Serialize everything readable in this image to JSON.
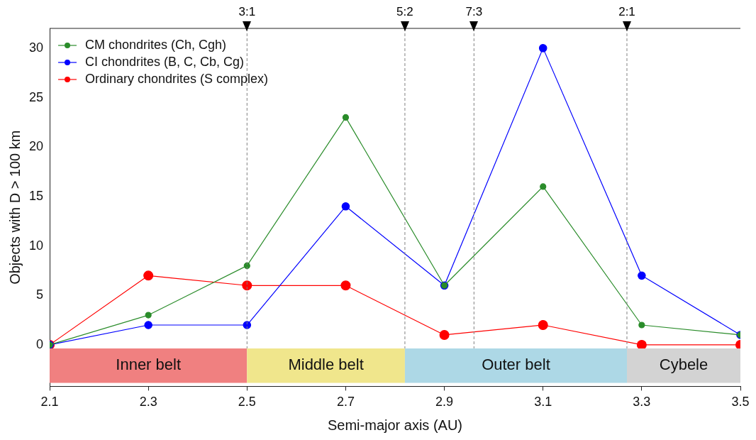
{
  "chart_data": {
    "type": "line",
    "xlabel": "Semi-major axis (AU)",
    "ylabel": "Objects with D > 100 km",
    "x": [
      2.1,
      2.3,
      2.5,
      2.7,
      2.9,
      3.1,
      3.3,
      3.5
    ],
    "series": [
      {
        "name": "CM chondrites (Ch, Cgh)",
        "color": "#2a8c2a",
        "values": [
          0,
          3,
          8,
          23,
          6,
          16,
          2,
          1
        ]
      },
      {
        "name": "CI chondrites (B, C, Cb, Cg)",
        "color": "#0000ff",
        "values": [
          0,
          2,
          2,
          14,
          6,
          30,
          7,
          1
        ]
      },
      {
        "name": "Ordinary chondrites (S complex)",
        "color": "#ff0000",
        "values": [
          0,
          7,
          6,
          6,
          1,
          2,
          0,
          0
        ]
      }
    ],
    "xlim": [
      2.1,
      3.5
    ],
    "xticks": [
      2.1,
      2.3,
      2.5,
      2.7,
      2.9,
      3.1,
      3.3,
      3.5
    ],
    "ylim": [
      -4.2,
      32
    ],
    "yticks": [
      0,
      5,
      10,
      15,
      20,
      25,
      30
    ],
    "ref_lines": [
      {
        "axis": "x",
        "value": 2.5,
        "color": "#808080",
        "line_style": "dashed"
      },
      {
        "axis": "x",
        "value": 2.82,
        "color": "#808080",
        "line_style": "dashed"
      },
      {
        "axis": "x",
        "value": 2.96,
        "color": "#808080",
        "line_style": "dashed"
      },
      {
        "axis": "x",
        "value": 3.27,
        "color": "#808080",
        "line_style": "dashed"
      }
    ],
    "annotations": [
      {
        "text": "3:1",
        "x": 2.5,
        "y": 32
      },
      {
        "text": "5:2",
        "x": 2.82,
        "y": 32
      },
      {
        "text": "7:3",
        "x": 2.96,
        "y": 32
      },
      {
        "text": "2:1",
        "x": 3.27,
        "y": 32
      }
    ],
    "bands": [
      {
        "axis": "x",
        "from": 2.1,
        "to": 2.5,
        "label": "Inner belt",
        "color": "#f08080"
      },
      {
        "axis": "x",
        "from": 2.5,
        "to": 2.82,
        "label": "Middle belt",
        "color": "#f0e68c"
      },
      {
        "axis": "x",
        "from": 2.82,
        "to": 3.27,
        "label": "Outer belt",
        "color": "#add8e6"
      },
      {
        "axis": "x",
        "from": 3.27,
        "to": 3.5,
        "label": "Cybele",
        "color": "#d3d3d3"
      }
    ],
    "legend": "top left",
    "marker": "circle",
    "line_style": "solid",
    "grid": false
  }
}
